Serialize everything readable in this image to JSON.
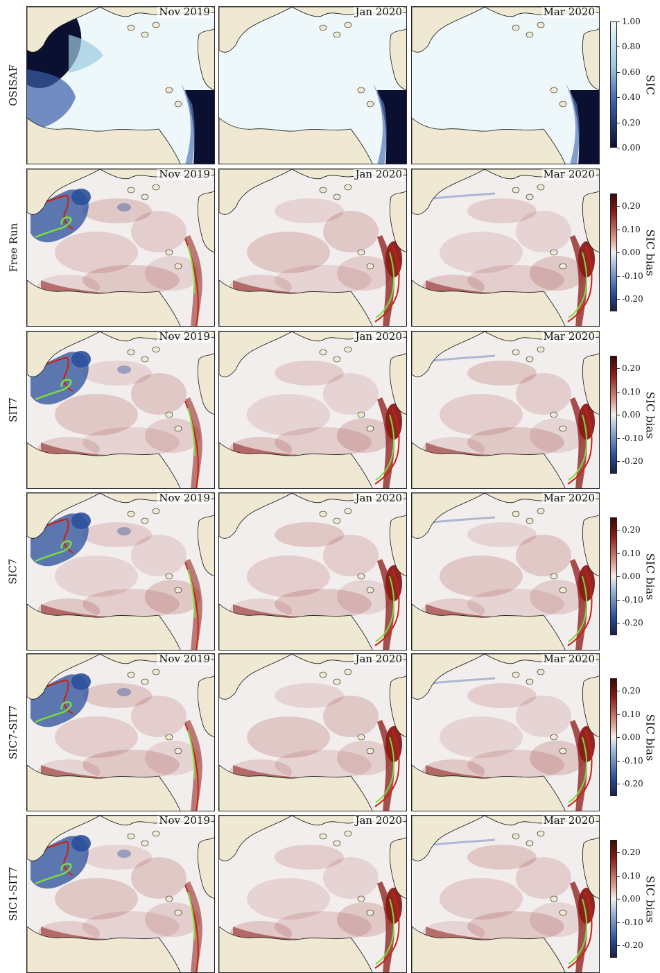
{
  "figure": {
    "rows": [
      {
        "label": "OSISAF",
        "type": "sic",
        "colorbar_label": "SIC",
        "ticks": [
          "1.00",
          "0.80",
          "0.60",
          "0.40",
          "0.20",
          "0.00"
        ]
      },
      {
        "label": "Free Run",
        "type": "bias",
        "colorbar_label": "SIC bias",
        "ticks": [
          "0.20",
          "0.10",
          "0.00",
          "-0.10",
          "-0.20"
        ]
      },
      {
        "label": "SIT7",
        "type": "bias",
        "colorbar_label": "SIC bias",
        "ticks": [
          "0.20",
          "0.10",
          "0.00",
          "-0.10",
          "-0.20"
        ]
      },
      {
        "label": "SIC7",
        "type": "bias",
        "colorbar_label": "SIC bias",
        "ticks": [
          "0.20",
          "0.10",
          "0.00",
          "-0.10",
          "-0.20"
        ]
      },
      {
        "label": "SIC7-SIT7",
        "type": "bias",
        "colorbar_label": "SIC bias",
        "ticks": [
          "0.20",
          "0.10",
          "0.00",
          "-0.10",
          "-0.20"
        ]
      },
      {
        "label": "SIC1-SIT7",
        "type": "bias",
        "colorbar_label": "SIC bias",
        "ticks": [
          "0.20",
          "0.10",
          "0.00",
          "-0.10",
          "-0.20"
        ]
      }
    ],
    "columns": [
      "Nov 2019",
      "Jan 2020",
      "Mar 2020"
    ],
    "colors": {
      "land": "#efe9d4",
      "ice_full": "#eef8fb",
      "ocean_open": "#0b1030",
      "bias_positive": "#8a1a16",
      "bias_neutral": "#f3eeee",
      "bias_negative": "#2a4f9a",
      "ice_edge_model": "#cc1f10",
      "ice_edge_obs": "#7ddc3c"
    }
  }
}
